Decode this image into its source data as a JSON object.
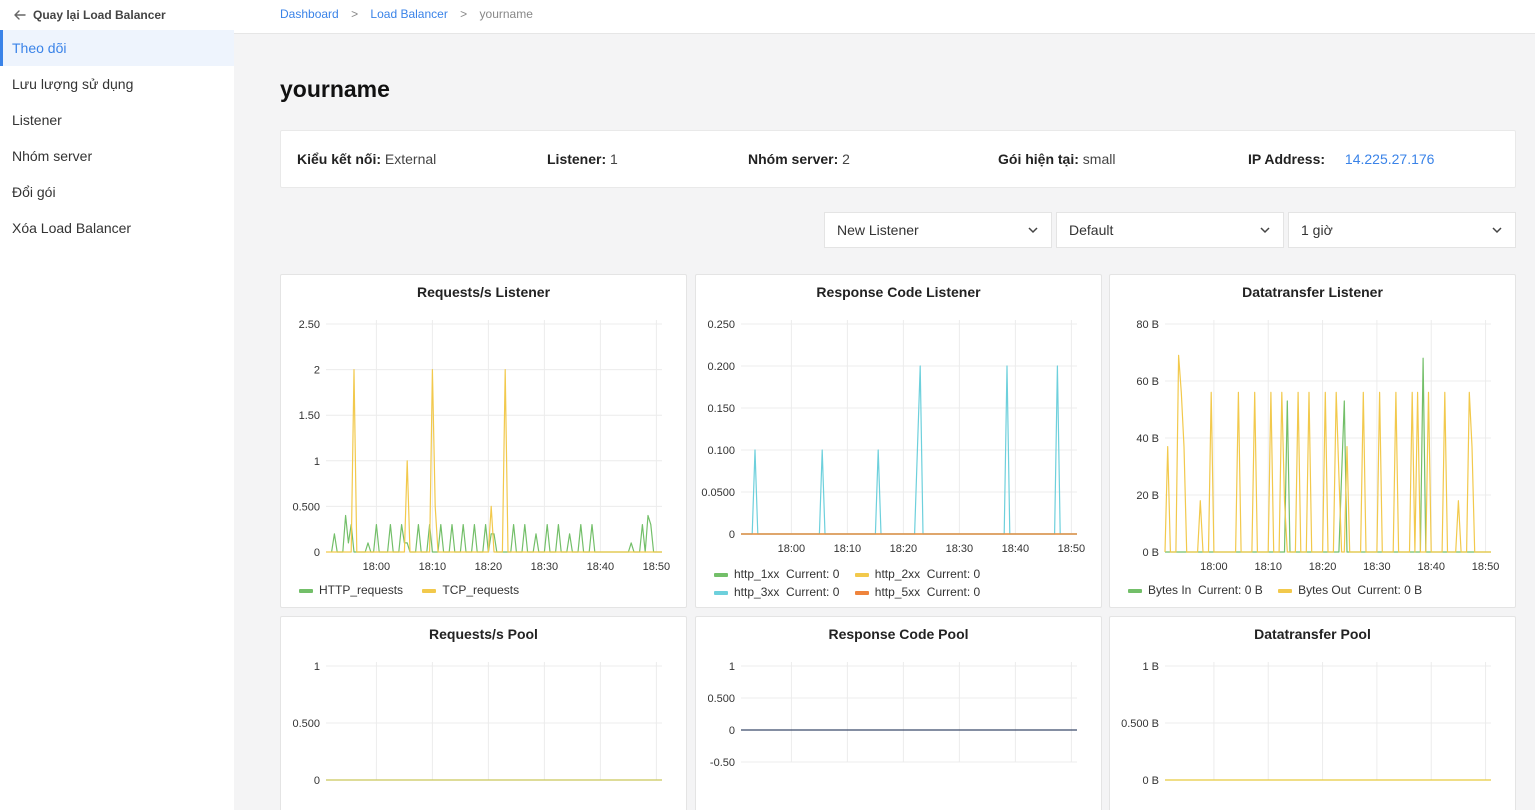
{
  "sidebar": {
    "back_label": "Quay lại Load Balancer",
    "items": [
      {
        "label": "Theo dõi",
        "active": true
      },
      {
        "label": "Lưu lượng sử dụng"
      },
      {
        "label": "Listener"
      },
      {
        "label": "Nhóm server"
      },
      {
        "label": "Đổi gói"
      },
      {
        "label": "Xóa Load Balancer"
      }
    ]
  },
  "breadcrumb": {
    "items": [
      "Dashboard",
      "Load Balancer"
    ],
    "separator": ">",
    "current": "yourname"
  },
  "page": {
    "title": "yourname"
  },
  "info": {
    "connection_label": "Kiểu kết nối:",
    "connection_value": "External",
    "listener_label": "Listener:",
    "listener_value": "1",
    "server_group_label": "Nhóm server:",
    "server_group_value": "2",
    "plan_label": "Gói hiện tại:",
    "plan_value": "small",
    "ip_label": "IP Address:",
    "ip_value": "14.225.27.176"
  },
  "filters": {
    "listener": "New Listener",
    "pool": "Default",
    "range": "1 giờ"
  },
  "colors": {
    "accent": "#3a83e8",
    "green": "#73bf69",
    "yellow": "#f2c94c",
    "cyan": "#6dd0dc",
    "orange": "#ef843c",
    "navy": "#3b4a6b"
  },
  "chart_data": [
    {
      "type": "line",
      "title": "Requests/s Listener",
      "x_ticks": [
        "18:00",
        "18:10",
        "18:20",
        "18:30",
        "18:40",
        "18:50"
      ],
      "y_ticks": [
        "0",
        "0.500",
        "1",
        "1.50",
        "2",
        "2.50"
      ],
      "ylim": [
        0,
        2.5
      ],
      "xlim": [
        "17:51",
        "18:51"
      ],
      "series": [
        {
          "name": "HTTP_requests",
          "color": "#73bf69",
          "points": [
            [
              "17:52",
              0
            ],
            [
              "17:52.5",
              0.2
            ],
            [
              "17:53",
              0
            ],
            [
              "17:54",
              0
            ],
            [
              "17:54.5",
              0.4
            ],
            [
              "17:55",
              0.1
            ],
            [
              "17:55.5",
              0.3
            ],
            [
              "17:56",
              0
            ],
            [
              "17:58",
              0
            ],
            [
              "17:58.5",
              0.1
            ],
            [
              "17:59",
              0
            ],
            [
              "17:59.5",
              0
            ],
            [
              "18:00",
              0.3
            ],
            [
              "18:00.5",
              0
            ],
            [
              "18:02",
              0
            ],
            [
              "18:02.5",
              0.3
            ],
            [
              "18:03",
              0
            ],
            [
              "18:04",
              0
            ],
            [
              "18:04.5",
              0.3
            ],
            [
              "18:05",
              0.1
            ],
            [
              "18:05.5",
              0.1
            ],
            [
              "18:06",
              0
            ],
            [
              "18:07",
              0
            ],
            [
              "18:07.5",
              0.3
            ],
            [
              "18:08",
              0
            ],
            [
              "18:09",
              0
            ],
            [
              "18:09.5",
              0.3
            ],
            [
              "18:10",
              0
            ],
            [
              "18:11",
              0
            ],
            [
              "18:11.5",
              0.3
            ],
            [
              "18:12",
              0
            ],
            [
              "18:13",
              0
            ],
            [
              "18:13.5",
              0.3
            ],
            [
              "18:14",
              0
            ],
            [
              "18:15",
              0
            ],
            [
              "18:15.5",
              0.3
            ],
            [
              "18:16",
              0
            ],
            [
              "18:17",
              0
            ],
            [
              "18:17.5",
              0.3
            ],
            [
              "18:18",
              0
            ],
            [
              "18:19",
              0
            ],
            [
              "18:19.5",
              0.3
            ],
            [
              "18:20",
              0
            ],
            [
              "18:20.5",
              0.2
            ],
            [
              "18:21",
              0.2
            ],
            [
              "18:21.5",
              0
            ],
            [
              "18:24",
              0
            ],
            [
              "18:24.5",
              0.3
            ],
            [
              "18:25",
              0
            ],
            [
              "18:26",
              0
            ],
            [
              "18:26.5",
              0.3
            ],
            [
              "18:27",
              0
            ],
            [
              "18:28",
              0
            ],
            [
              "18:28.5",
              0.2
            ],
            [
              "18:29",
              0
            ],
            [
              "18:30",
              0
            ],
            [
              "18:30.5",
              0.3
            ],
            [
              "18:31",
              0
            ],
            [
              "18:32",
              0
            ],
            [
              "18:32.5",
              0.3
            ],
            [
              "18:33",
              0
            ],
            [
              "18:34",
              0
            ],
            [
              "18:34.5",
              0.2
            ],
            [
              "18:35",
              0
            ],
            [
              "18:36",
              0
            ],
            [
              "18:36.5",
              0.3
            ],
            [
              "18:37",
              0
            ],
            [
              "18:38",
              0
            ],
            [
              "18:38.5",
              0.3
            ],
            [
              "18:39",
              0
            ],
            [
              "18:45",
              0
            ],
            [
              "18:45.5",
              0.1
            ],
            [
              "18:46",
              0
            ],
            [
              "18:47",
              0
            ],
            [
              "18:47.5",
              0.3
            ],
            [
              "18:48",
              0
            ],
            [
              "18:48.5",
              0.4
            ],
            [
              "18:49",
              0.3
            ],
            [
              "18:49.5",
              0
            ],
            [
              "18:51",
              0
            ]
          ]
        },
        {
          "name": "TCP_requests",
          "color": "#f2c94c",
          "points": [
            [
              "17:51",
              0
            ],
            [
              "17:55.5",
              0
            ],
            [
              "17:56",
              2
            ],
            [
              "17:56.5",
              0
            ],
            [
              "18:05",
              0
            ],
            [
              "18:05.5",
              1
            ],
            [
              "18:06",
              0
            ],
            [
              "18:09.5",
              0
            ],
            [
              "18:10",
              2
            ],
            [
              "18:10.5",
              0.5
            ],
            [
              "18:11",
              0
            ],
            [
              "18:20",
              0
            ],
            [
              "18:20.5",
              0.5
            ],
            [
              "18:21",
              0
            ],
            [
              "18:22",
              0
            ],
            [
              "18:22.5",
              0
            ],
            [
              "18:23",
              2
            ],
            [
              "18:23.5",
              0
            ],
            [
              "18:51",
              0
            ]
          ]
        }
      ]
    },
    {
      "type": "line",
      "title": "Response Code Listener",
      "x_ticks": [
        "18:00",
        "18:10",
        "18:20",
        "18:30",
        "18:40",
        "18:50"
      ],
      "y_ticks": [
        "0",
        "0.0500",
        "0.100",
        "0.150",
        "0.200",
        "0.250"
      ],
      "ylim": [
        0,
        0.25
      ],
      "xlim": [
        "17:51",
        "18:51"
      ],
      "series": [
        {
          "name": "http_1xx",
          "color": "#73bf69",
          "current": "0",
          "points": [
            [
              "17:51",
              0
            ],
            [
              "18:51",
              0
            ]
          ]
        },
        {
          "name": "http_2xx",
          "color": "#f2c94c",
          "current": "0",
          "points": [
            [
              "17:51",
              0
            ],
            [
              "18:51",
              0
            ]
          ]
        },
        {
          "name": "http_3xx",
          "color": "#6dd0dc",
          "current": "0",
          "points": [
            [
              "17:51",
              0
            ],
            [
              "17:53",
              0
            ],
            [
              "17:53.5",
              0.1
            ],
            [
              "17:54",
              0
            ],
            [
              "18:05",
              0
            ],
            [
              "18:05.5",
              0.1
            ],
            [
              "18:06",
              0
            ],
            [
              "18:15",
              0
            ],
            [
              "18:15.5",
              0.1
            ],
            [
              "18:16",
              0
            ],
            [
              "18:22",
              0
            ],
            [
              "18:22.5",
              0.1
            ],
            [
              "18:23",
              0.2
            ],
            [
              "18:23.5",
              0
            ],
            [
              "18:38",
              0
            ],
            [
              "18:38.5",
              0.2
            ],
            [
              "18:39",
              0
            ],
            [
              "18:47",
              0
            ],
            [
              "18:47.5",
              0.2
            ],
            [
              "18:48",
              0
            ],
            [
              "18:51",
              0
            ]
          ]
        },
        {
          "name": "http_5xx",
          "color": "#ef843c",
          "current": "0",
          "points": [
            [
              "17:51",
              0
            ],
            [
              "18:51",
              0
            ]
          ]
        }
      ]
    },
    {
      "type": "line",
      "title": "Datatransfer Listener",
      "x_ticks": [
        "18:00",
        "18:10",
        "18:20",
        "18:30",
        "18:40",
        "18:50"
      ],
      "y_ticks": [
        "0 B",
        "20 B",
        "40 B",
        "60 B",
        "80 B"
      ],
      "ylim": [
        0,
        80
      ],
      "xlim": [
        "17:51",
        "18:51"
      ],
      "series": [
        {
          "name": "Bytes In",
          "color": "#73bf69",
          "current": "0 B",
          "points": [
            [
              "17:51",
              0
            ],
            [
              "18:13",
              0
            ],
            [
              "18:13.5",
              53
            ],
            [
              "18:14",
              0
            ],
            [
              "18:23",
              0
            ],
            [
              "18:23.5",
              27
            ],
            [
              "18:24",
              53
            ],
            [
              "18:24.5",
              0
            ],
            [
              "18:38",
              0
            ],
            [
              "18:38.5",
              68
            ],
            [
              "18:39",
              0
            ],
            [
              "18:51",
              0
            ]
          ]
        },
        {
          "name": "Bytes Out",
          "color": "#f2c94c",
          "current": "0 B",
          "points": [
            [
              "17:51",
              0
            ],
            [
              "17:51.5",
              37
            ],
            [
              "17:52",
              0
            ],
            [
              "17:53",
              0
            ],
            [
              "17:53.5",
              69
            ],
            [
              "17:54",
              56
            ],
            [
              "17:54.5",
              37
            ],
            [
              "17:55",
              0
            ],
            [
              "17:57",
              0
            ],
            [
              "17:57.5",
              18
            ],
            [
              "17:58",
              0
            ],
            [
              "17:59",
              0
            ],
            [
              "17:59.5",
              56
            ],
            [
              "18:00",
              0
            ],
            [
              "18:04",
              0
            ],
            [
              "18:04.5",
              56
            ],
            [
              "18:05",
              0
            ],
            [
              "18:07",
              0
            ],
            [
              "18:07.5",
              56
            ],
            [
              "18:08",
              0
            ],
            [
              "18:10",
              0
            ],
            [
              "18:10.5",
              56
            ],
            [
              "18:11",
              0
            ],
            [
              "18:12",
              0
            ],
            [
              "18:12.5",
              56
            ],
            [
              "18:13",
              18
            ],
            [
              "18:13.5",
              0
            ],
            [
              "18:15",
              0
            ],
            [
              "18:15.5",
              56
            ],
            [
              "18:16",
              0
            ],
            [
              "18:17",
              0
            ],
            [
              "18:17.5",
              56
            ],
            [
              "18:18",
              0
            ],
            [
              "18:20",
              0
            ],
            [
              "18:20.5",
              56
            ],
            [
              "18:21",
              0
            ],
            [
              "18:22",
              0
            ],
            [
              "18:22.5",
              56
            ],
            [
              "18:23",
              27
            ],
            [
              "18:23.5",
              0
            ],
            [
              "18:24",
              0
            ],
            [
              "18:24.5",
              37
            ],
            [
              "18:25",
              0
            ],
            [
              "18:27",
              0
            ],
            [
              "18:27.5",
              56
            ],
            [
              "18:28",
              0
            ],
            [
              "18:30",
              0
            ],
            [
              "18:30.5",
              56
            ],
            [
              "18:31",
              0
            ],
            [
              "18:33",
              0
            ],
            [
              "18:33.5",
              56
            ],
            [
              "18:34",
              0
            ],
            [
              "18:36",
              0
            ],
            [
              "18:36.5",
              56
            ],
            [
              "18:37",
              0
            ],
            [
              "18:37.5",
              56
            ],
            [
              "18:38",
              0
            ],
            [
              "18:39",
              0
            ],
            [
              "18:39.5",
              56
            ],
            [
              "18:40",
              0
            ],
            [
              "18:42",
              0
            ],
            [
              "18:42.5",
              56
            ],
            [
              "18:43",
              0
            ],
            [
              "18:44.5",
              0
            ],
            [
              "18:45",
              18
            ],
            [
              "18:45.5",
              0
            ],
            [
              "18:46.5",
              0
            ],
            [
              "18:47",
              56
            ],
            [
              "18:47.5",
              37
            ],
            [
              "18:48",
              0
            ],
            [
              "18:51",
              0
            ]
          ]
        }
      ]
    },
    {
      "type": "line",
      "title": "Requests/s Pool",
      "x_ticks": [],
      "y_ticks": [
        "0",
        "0.500",
        "1"
      ],
      "ylim": [
        0,
        1
      ],
      "xlim": [
        "17:51",
        "18:51"
      ],
      "series": [
        {
          "name": "",
          "color": "#c9c75b",
          "points": [
            [
              "17:51",
              0
            ],
            [
              "18:51",
              0
            ]
          ]
        }
      ]
    },
    {
      "type": "line",
      "title": "Response Code Pool",
      "x_ticks": [],
      "y_ticks": [
        "-0.50",
        "0",
        "0.500",
        "1"
      ],
      "ylim": [
        -0.5,
        1
      ],
      "xlim": [
        "17:51",
        "18:51"
      ],
      "series": [
        {
          "name": "",
          "color": "#3b4a6b",
          "points": [
            [
              "17:51",
              0
            ],
            [
              "18:51",
              0
            ]
          ]
        }
      ]
    },
    {
      "type": "line",
      "title": "Datatransfer Pool",
      "x_ticks": [],
      "y_ticks": [
        "0 B",
        "0.500 B",
        "1 B"
      ],
      "ylim": [
        0,
        1
      ],
      "xlim": [
        "17:51",
        "18:51"
      ],
      "series": [
        {
          "name": "",
          "color": "#e8c93d",
          "points": [
            [
              "17:51",
              0
            ],
            [
              "18:51",
              0
            ]
          ]
        }
      ]
    }
  ]
}
